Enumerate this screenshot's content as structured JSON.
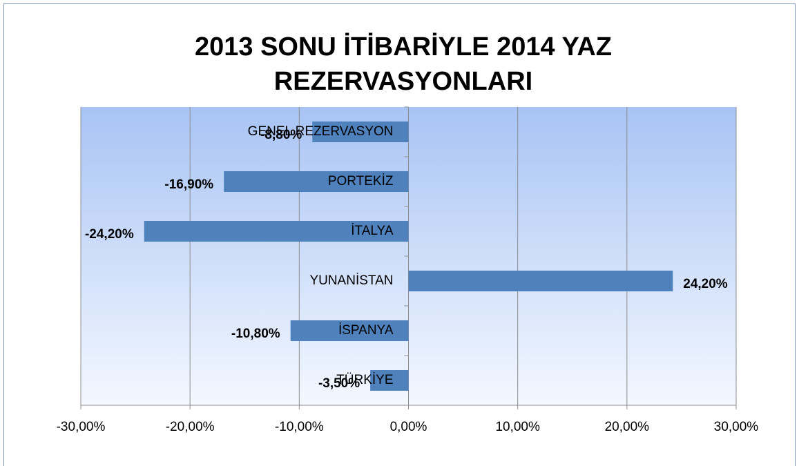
{
  "chart_data": {
    "type": "bar",
    "orientation": "horizontal",
    "title": "2013 SONU İTİBARİYLE 2014 YAZ REZERVASYONLARI",
    "categories": [
      "GENEL REZERVASYON",
      "PORTEKİZ",
      "İTALYA",
      "YUNANİSTAN",
      "İSPANYA",
      "TÜRKİYE"
    ],
    "values": [
      -8.8,
      -16.9,
      -24.2,
      24.2,
      -10.8,
      -3.5
    ],
    "value_labels": [
      "-8,80%",
      "-16,90%",
      "-24,20%",
      "24,20%",
      "-10,80%",
      "-3,50%"
    ],
    "color": "#4f81bd",
    "xlim": [
      -30,
      30
    ],
    "xticks": [
      {
        "value": -30,
        "label": "-30,00%"
      },
      {
        "value": -20,
        "label": "-20,00%"
      },
      {
        "value": -10,
        "label": "-10,00%"
      },
      {
        "value": 0,
        "label": "0,00%"
      },
      {
        "value": 10,
        "label": "10,00%"
      },
      {
        "value": 20,
        "label": "20,00%"
      },
      {
        "value": 30,
        "label": "30,00%"
      }
    ],
    "grid": true
  }
}
